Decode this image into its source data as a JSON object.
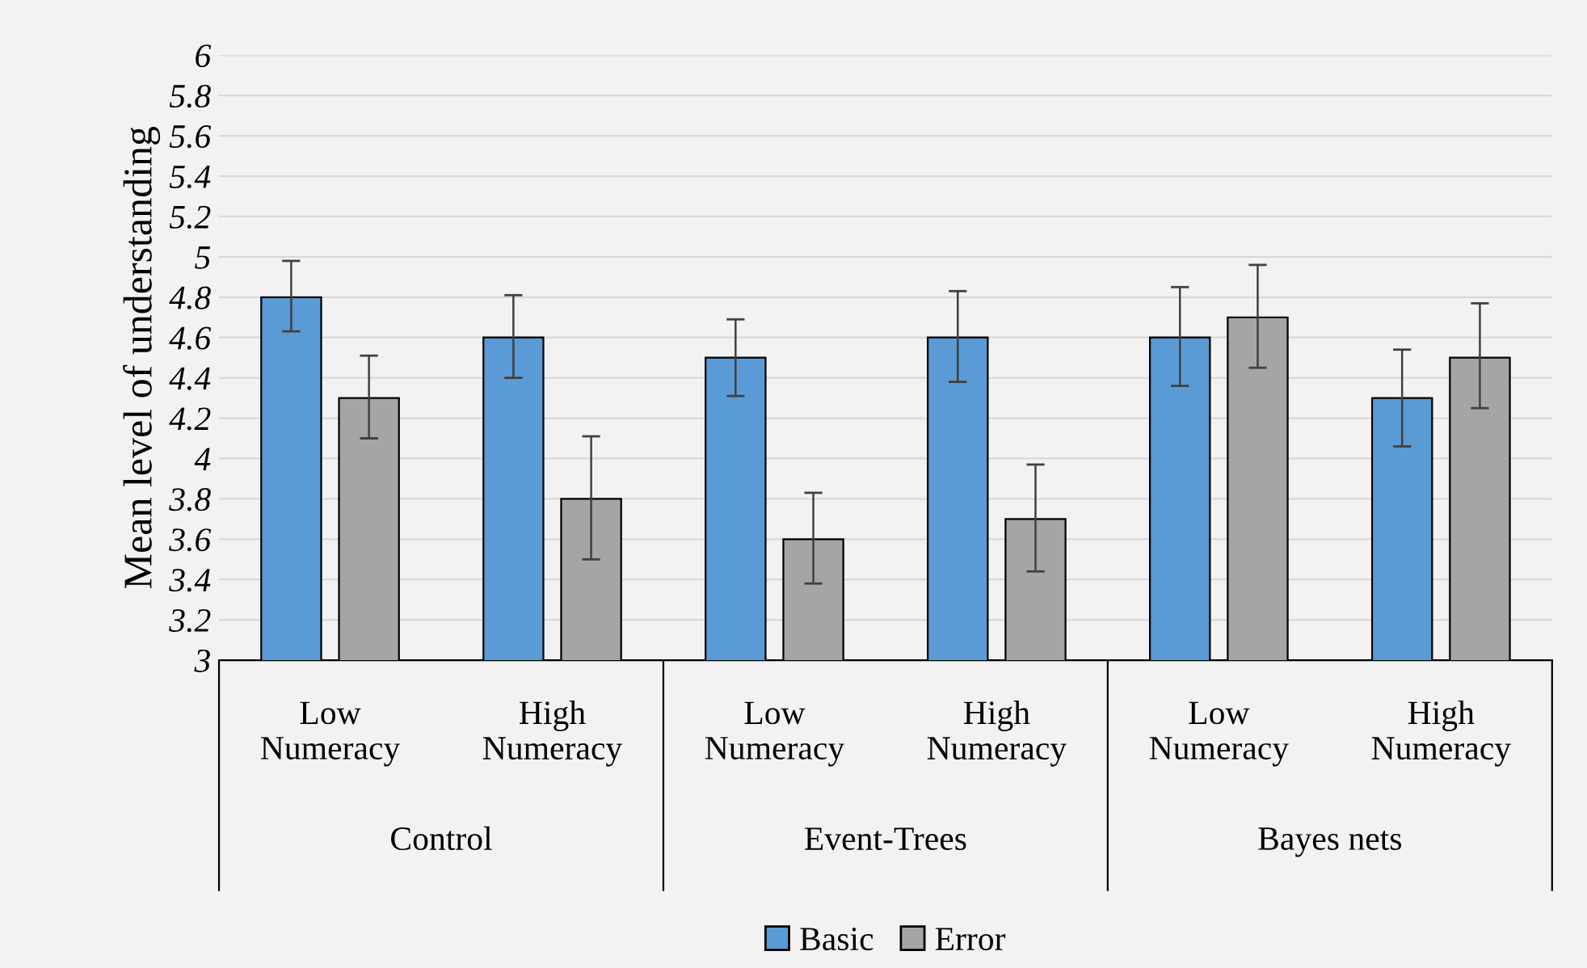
{
  "chart_data": {
    "type": "bar",
    "ylabel": "Mean level of understanding",
    "categories": [
      "Low\nNumeracy",
      "High\nNumeracy",
      "Low\nNumeracy",
      "High\nNumeracy",
      "Low\nNumeracy",
      "High\nNumeracy"
    ],
    "series": [
      {
        "name": "Basic",
        "color": "#5b9bd5",
        "values": [
          4.8,
          4.6,
          4.5,
          4.6,
          4.6,
          4.3
        ],
        "errors": [
          [
            4.63,
            4.98
          ],
          [
            4.4,
            4.81
          ],
          [
            4.31,
            4.69
          ],
          [
            4.38,
            4.83
          ],
          [
            4.36,
            4.85
          ],
          [
            4.06,
            4.54
          ]
        ]
      },
      {
        "name": "Error",
        "color": "#a5a5a5",
        "values": [
          4.3,
          3.8,
          3.6,
          3.7,
          4.7,
          4.5
        ],
        "errors": [
          [
            4.1,
            4.51
          ],
          [
            3.5,
            4.11
          ],
          [
            3.38,
            3.83
          ],
          [
            3.44,
            3.97
          ],
          [
            4.45,
            4.96
          ],
          [
            4.25,
            4.77
          ]
        ]
      }
    ],
    "annotations": [
      "Control",
      "Event-Trees",
      "Bayes nets"
    ],
    "ylim": [
      3,
      6
    ],
    "yticks": [
      3,
      3.2,
      3.4,
      3.6,
      3.8,
      4,
      4.2,
      4.4,
      4.6,
      4.8,
      5,
      5.2,
      5.4,
      5.6,
      5.8,
      6
    ],
    "grid": "y",
    "legend": "bottom"
  }
}
